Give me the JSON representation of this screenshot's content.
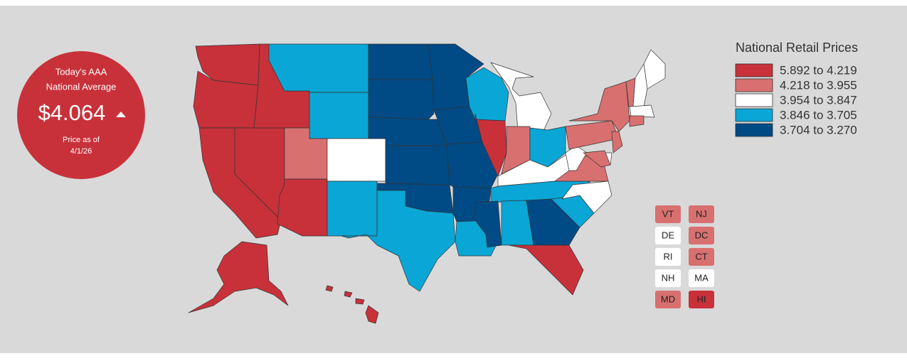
{
  "badge": {
    "line1": "Today's AAA",
    "line2": "National Average",
    "price": "$4.064",
    "note": "Price as of",
    "date": "4/1/26"
  },
  "legend": {
    "title": "National Retail Prices",
    "items": [
      {
        "label": "5.892 to 4.219",
        "color": "#c8313a"
      },
      {
        "label": "4.218 to 3.955",
        "color": "#d97070"
      },
      {
        "label": "3.954 to 3.847",
        "color": "#ffffff"
      },
      {
        "label": "3.846 to 3.705",
        "color": "#0aa6d6"
      },
      {
        "label": "3.704 to 3.270",
        "color": "#004a85"
      }
    ]
  },
  "small_states": [
    {
      "label": "VT",
      "color": "#d97070"
    },
    {
      "label": "NJ",
      "color": "#d97070"
    },
    {
      "label": "DE",
      "color": "#ffffff"
    },
    {
      "label": "DC",
      "color": "#d97070"
    },
    {
      "label": "RI",
      "color": "#ffffff"
    },
    {
      "label": "CT",
      "color": "#d97070"
    },
    {
      "label": "NH",
      "color": "#ffffff"
    },
    {
      "label": "MA",
      "color": "#ffffff"
    },
    {
      "label": "MD",
      "color": "#d97070"
    },
    {
      "label": "HI",
      "color": "#c8313a"
    }
  ]
}
